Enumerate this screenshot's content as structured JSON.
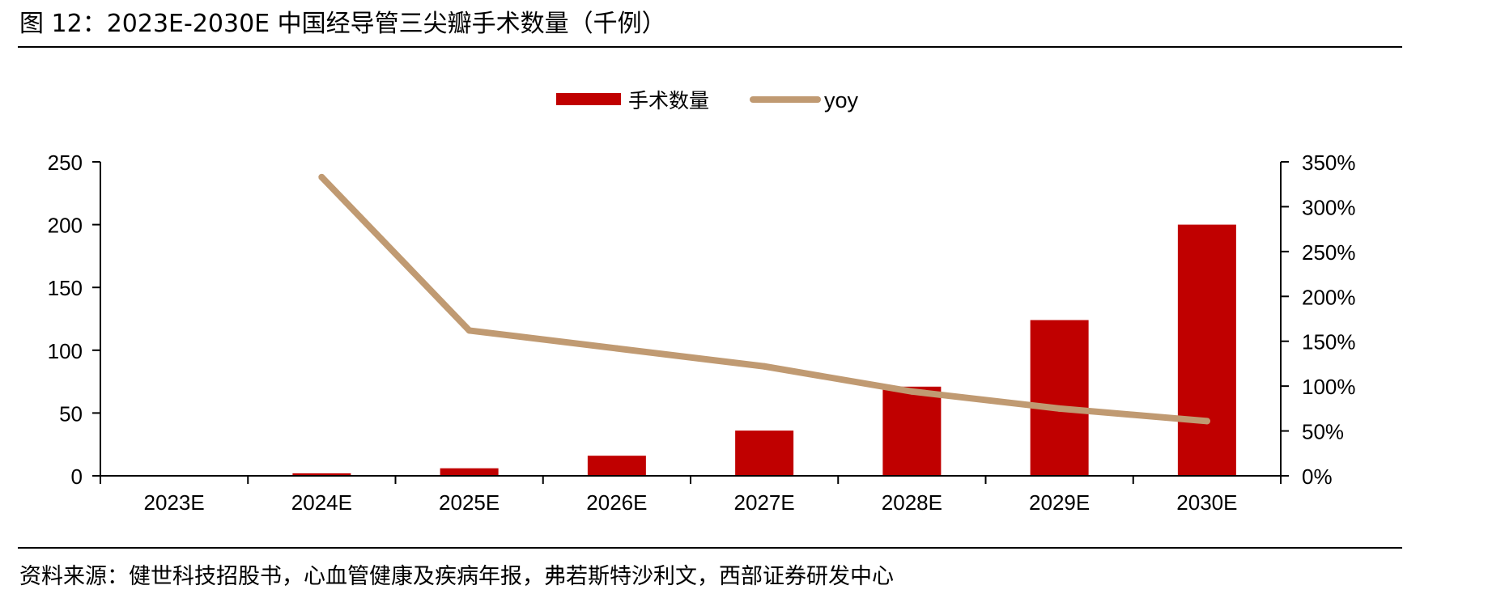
{
  "figure_title": "图 12：2023E-2030E 中国经导管三尖瓣手术数量（千例）",
  "source_note": "资料来源：健世科技招股书，心血管健康及疾病年报，弗若斯特沙利文，西部证券研发中心",
  "colors": {
    "bar": "#c00000",
    "line": "#c09a72"
  },
  "chart_data": {
    "type": "bar",
    "title": "",
    "categories": [
      "2023E",
      "2024E",
      "2025E",
      "2026E",
      "2027E",
      "2028E",
      "2029E",
      "2030E"
    ],
    "series": [
      {
        "name": "手术数量",
        "type": "bar",
        "axis": "left",
        "values": [
          0.5,
          2,
          6,
          16,
          36,
          71,
          124,
          200
        ]
      },
      {
        "name": "yoy",
        "type": "line",
        "axis": "right",
        "values": [
          null,
          3.33,
          1.62,
          1.42,
          1.22,
          0.94,
          0.75,
          0.61
        ]
      }
    ],
    "y_left": {
      "min": 0,
      "max": 250,
      "ticks": [
        "0",
        "50",
        "100",
        "150",
        "200",
        "250"
      ]
    },
    "y_right": {
      "min": 0,
      "max": 3.5,
      "ticks": [
        "0%",
        "50%",
        "100%",
        "150%",
        "200%",
        "250%",
        "300%",
        "350%"
      ]
    },
    "legend_position": "top-center",
    "grid": false
  }
}
